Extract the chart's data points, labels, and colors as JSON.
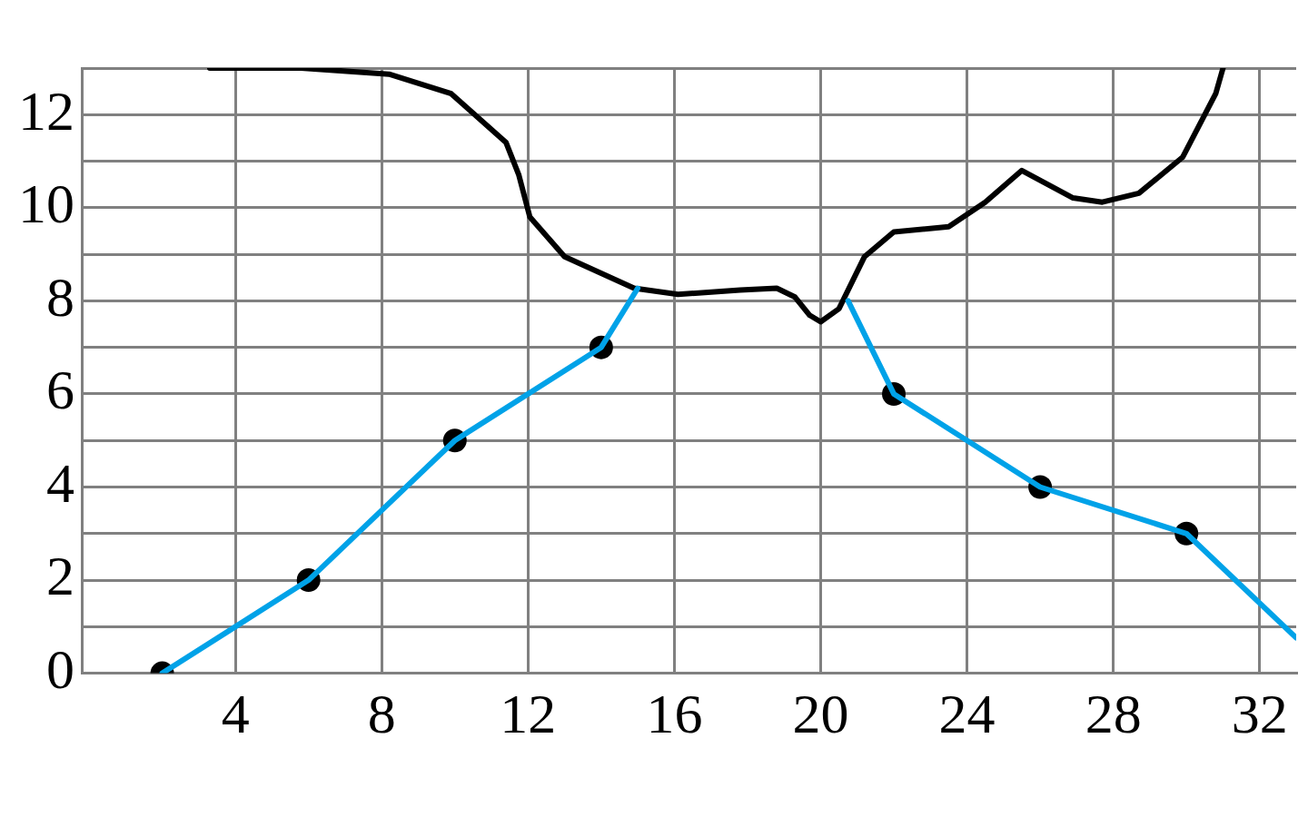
{
  "chart_data": {
    "type": "line",
    "xlim": [
      -0.2,
      33
    ],
    "ylim": [
      0,
      13
    ],
    "xticks": [
      4,
      8,
      12,
      16,
      20,
      24,
      28,
      32
    ],
    "yticks": [
      0,
      {
        "value": 1,
        "label": null
      },
      2,
      {
        "value": 3,
        "label": null
      },
      4,
      {
        "value": 5,
        "label": null
      },
      6,
      {
        "value": 7,
        "label": null
      },
      8,
      {
        "value": 9,
        "label": null
      },
      10,
      {
        "value": 11,
        "label": null
      },
      12,
      {
        "value": 13,
        "label": null
      }
    ],
    "grid": true,
    "legend": false,
    "series": [
      {
        "color": "#00a2e8",
        "marker": "none",
        "x": [
          2,
          6,
          10,
          14,
          15,
          18,
          20.75,
          22,
          26,
          30,
          33
        ],
        "values": [
          0,
          2,
          5,
          7,
          8.27,
          null,
          8,
          6,
          4,
          3,
          0.76
        ]
      },
      {
        "color": "#000000",
        "marker": "none",
        "x": [
          3.3,
          5.8,
          8.2,
          9.9,
          11.4,
          11.75,
          12.05,
          13,
          14.9,
          16.1,
          17.8,
          18.8,
          19.3,
          19.7,
          20,
          20.5,
          21.2,
          22,
          23.5,
          24.5,
          25.5,
          26.9,
          27.7,
          28.7,
          29.9,
          30.8,
          31
        ],
        "values": [
          13,
          13,
          12.87,
          12.45,
          11.4,
          10.7,
          9.8,
          8.95,
          8.27,
          8.14,
          8.23,
          8.27,
          8.08,
          7.69,
          7.55,
          7.83,
          8.95,
          9.48,
          9.59,
          10.12,
          10.8,
          10.21,
          10.12,
          10.31,
          11.09,
          12.45,
          13
        ]
      },
      {
        "type": "scatter",
        "color": "#000000",
        "marker": "circle",
        "x": [
          2,
          6,
          10,
          14,
          22,
          26,
          30
        ],
        "values": [
          0,
          2,
          5,
          7,
          6,
          4,
          3
        ]
      }
    ]
  }
}
